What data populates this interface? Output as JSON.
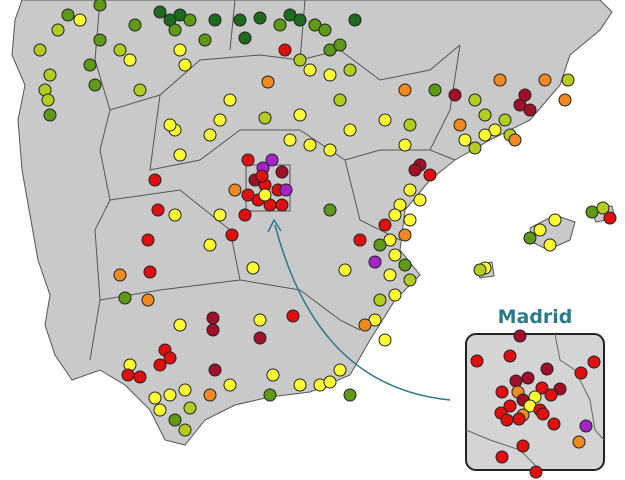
{
  "inset": {
    "label": "Madrid"
  },
  "colors": {
    "land": "#c9c9c9",
    "border": "#555555",
    "arrow": "#2a7a8c",
    "dot_scale": [
      "#1e6a1e",
      "#5e9a18",
      "#b4cc20",
      "#ffff33",
      "#f08a20",
      "#e01010",
      "#a01028",
      "#a424c8"
    ]
  }
}
